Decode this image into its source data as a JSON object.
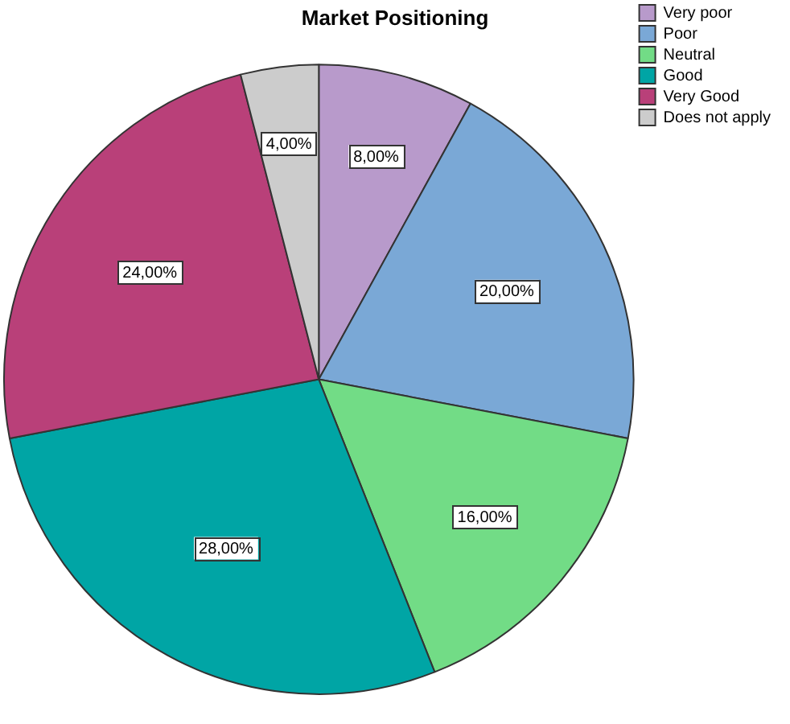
{
  "chart_data": {
    "type": "pie",
    "title": "Market Positioning",
    "categories": [
      "Very poor",
      "Poor",
      "Neutral",
      "Good",
      "Very Good",
      "Does not apply"
    ],
    "values": [
      8,
      20,
      16,
      28,
      24,
      4
    ],
    "colors": [
      "#b89acb",
      "#7aa8d6",
      "#72dc86",
      "#00a5a5",
      "#b94079",
      "#cccccc"
    ],
    "value_labels": [
      "8,00%",
      "20,00%",
      "16,00%",
      "28,00%",
      "24,00%",
      "4,00%"
    ],
    "legend": "top right"
  }
}
